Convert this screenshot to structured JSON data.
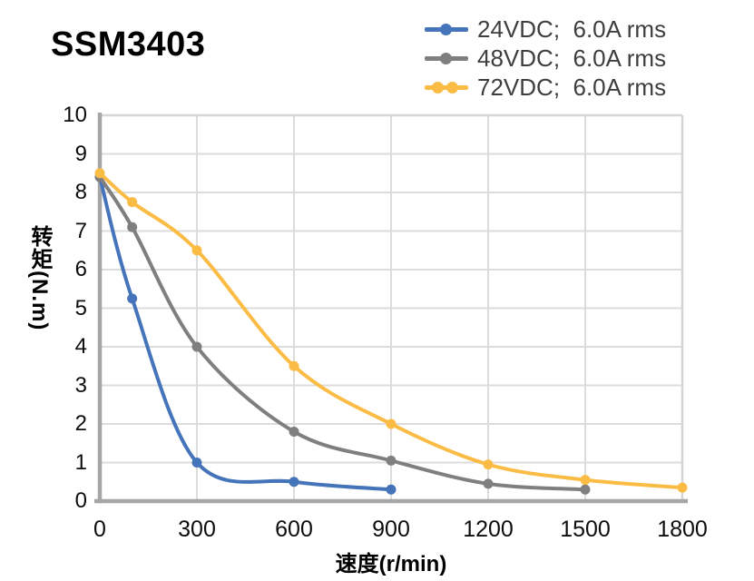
{
  "title": "SSM3403",
  "legend": {
    "items": [
      {
        "id": "24vdc",
        "label": "24VDC;  6.0A rms",
        "color": "#4574BA",
        "marker_dots": 1
      },
      {
        "id": "48vdc",
        "label": "48VDC;  6.0A rms",
        "color": "#7F7F7F",
        "marker_dots": 1
      },
      {
        "id": "72vdc",
        "label": "72VDC;  6.0A rms",
        "color": "#FBBC45",
        "marker_dots": 2
      }
    ]
  },
  "chart_data": {
    "type": "line",
    "title": "SSM3403",
    "xlabel": "速度(r/min)",
    "ylabel": "转矩(N.m)",
    "xlim": [
      0,
      1800
    ],
    "ylim": [
      0,
      10
    ],
    "x_ticks": [
      0,
      300,
      600,
      900,
      1200,
      1500,
      1800
    ],
    "y_ticks": [
      0,
      1,
      2,
      3,
      4,
      5,
      6,
      7,
      8,
      9,
      10
    ],
    "grid": true,
    "smooth_lines": true,
    "legend_position": "top-right",
    "series": [
      {
        "id": "24vdc",
        "name": "24VDC;  6.0A rms",
        "color": "#4574BA",
        "points": [
          [
            0,
            8.4
          ],
          [
            100,
            5.25
          ],
          [
            300,
            1.0
          ],
          [
            600,
            0.5
          ],
          [
            900,
            0.3
          ]
        ]
      },
      {
        "id": "48vdc",
        "name": "48VDC;  6.0A rms",
        "color": "#7F7F7F",
        "points": [
          [
            0,
            8.4
          ],
          [
            100,
            7.1
          ],
          [
            300,
            4.0
          ],
          [
            600,
            1.8
          ],
          [
            900,
            1.05
          ],
          [
            1200,
            0.45
          ],
          [
            1500,
            0.3
          ]
        ]
      },
      {
        "id": "72vdc",
        "name": "72VDC;  6.0A rms",
        "color": "#FBBC45",
        "points": [
          [
            0,
            8.5
          ],
          [
            100,
            7.75
          ],
          [
            300,
            6.5
          ],
          [
            600,
            3.5
          ],
          [
            900,
            2.0
          ],
          [
            1200,
            0.95
          ],
          [
            1500,
            0.55
          ],
          [
            1800,
            0.35
          ]
        ]
      }
    ]
  },
  "colors": {
    "axis": "#A6A6A6",
    "border": "#D6D6D6",
    "gridline": "#DCDCDC",
    "tick_text": "#0D0D0D",
    "legend_text": "#3E3E3E",
    "background": "#FFFFFF"
  }
}
